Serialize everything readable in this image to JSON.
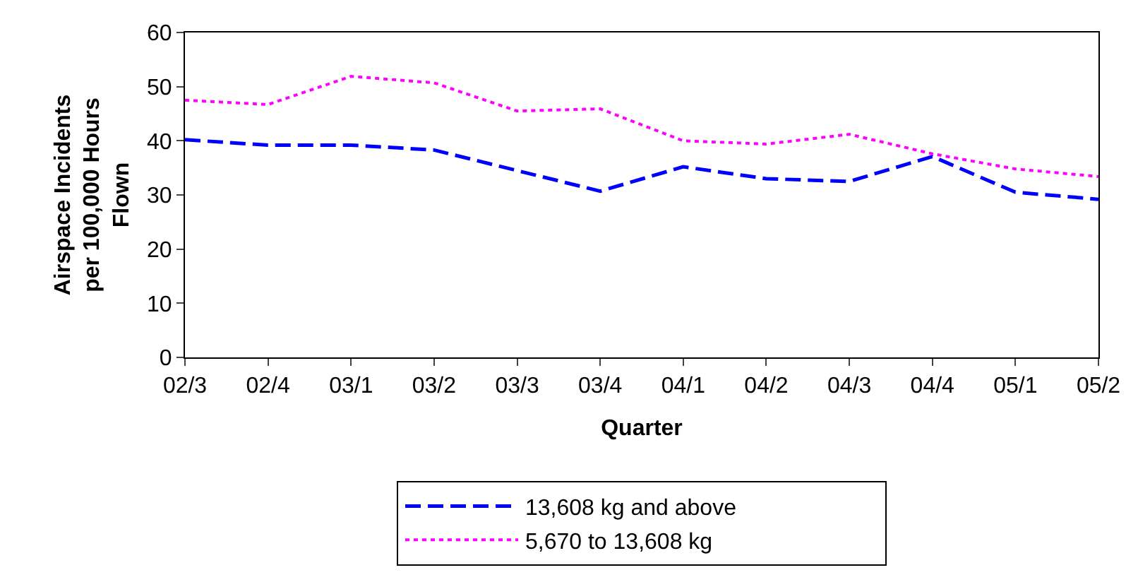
{
  "chart_data": {
    "type": "line",
    "xlabel": "Quarter",
    "ylabel": "Airspace Incidents per 100,000 Hours Flown",
    "categories": [
      "02/3",
      "02/4",
      "03/1",
      "03/2",
      "03/3",
      "03/4",
      "04/1",
      "04/2",
      "04/3",
      "04/4",
      "05/1",
      "05/2"
    ],
    "series": [
      {
        "name": "13,608 kg and above",
        "color": "#0000ff",
        "line_style": "dashed",
        "values": [
          40.2,
          39.2,
          39.2,
          38.3,
          34.5,
          30.7,
          35.2,
          33.0,
          32.5,
          37.1,
          30.5,
          29.2
        ]
      },
      {
        "name": "5,670 to 13,608 kg",
        "color": "#ff00ff",
        "line_style": "dotted",
        "values": [
          47.5,
          46.7,
          51.9,
          50.7,
          45.5,
          45.9,
          40.0,
          39.4,
          41.2,
          37.6,
          34.8,
          33.4
        ]
      }
    ],
    "ylim": [
      0,
      60
    ],
    "yticks": [
      0,
      10,
      20,
      30,
      40,
      50,
      60
    ],
    "grid": false,
    "legend": "bottom",
    "marker": "none"
  }
}
